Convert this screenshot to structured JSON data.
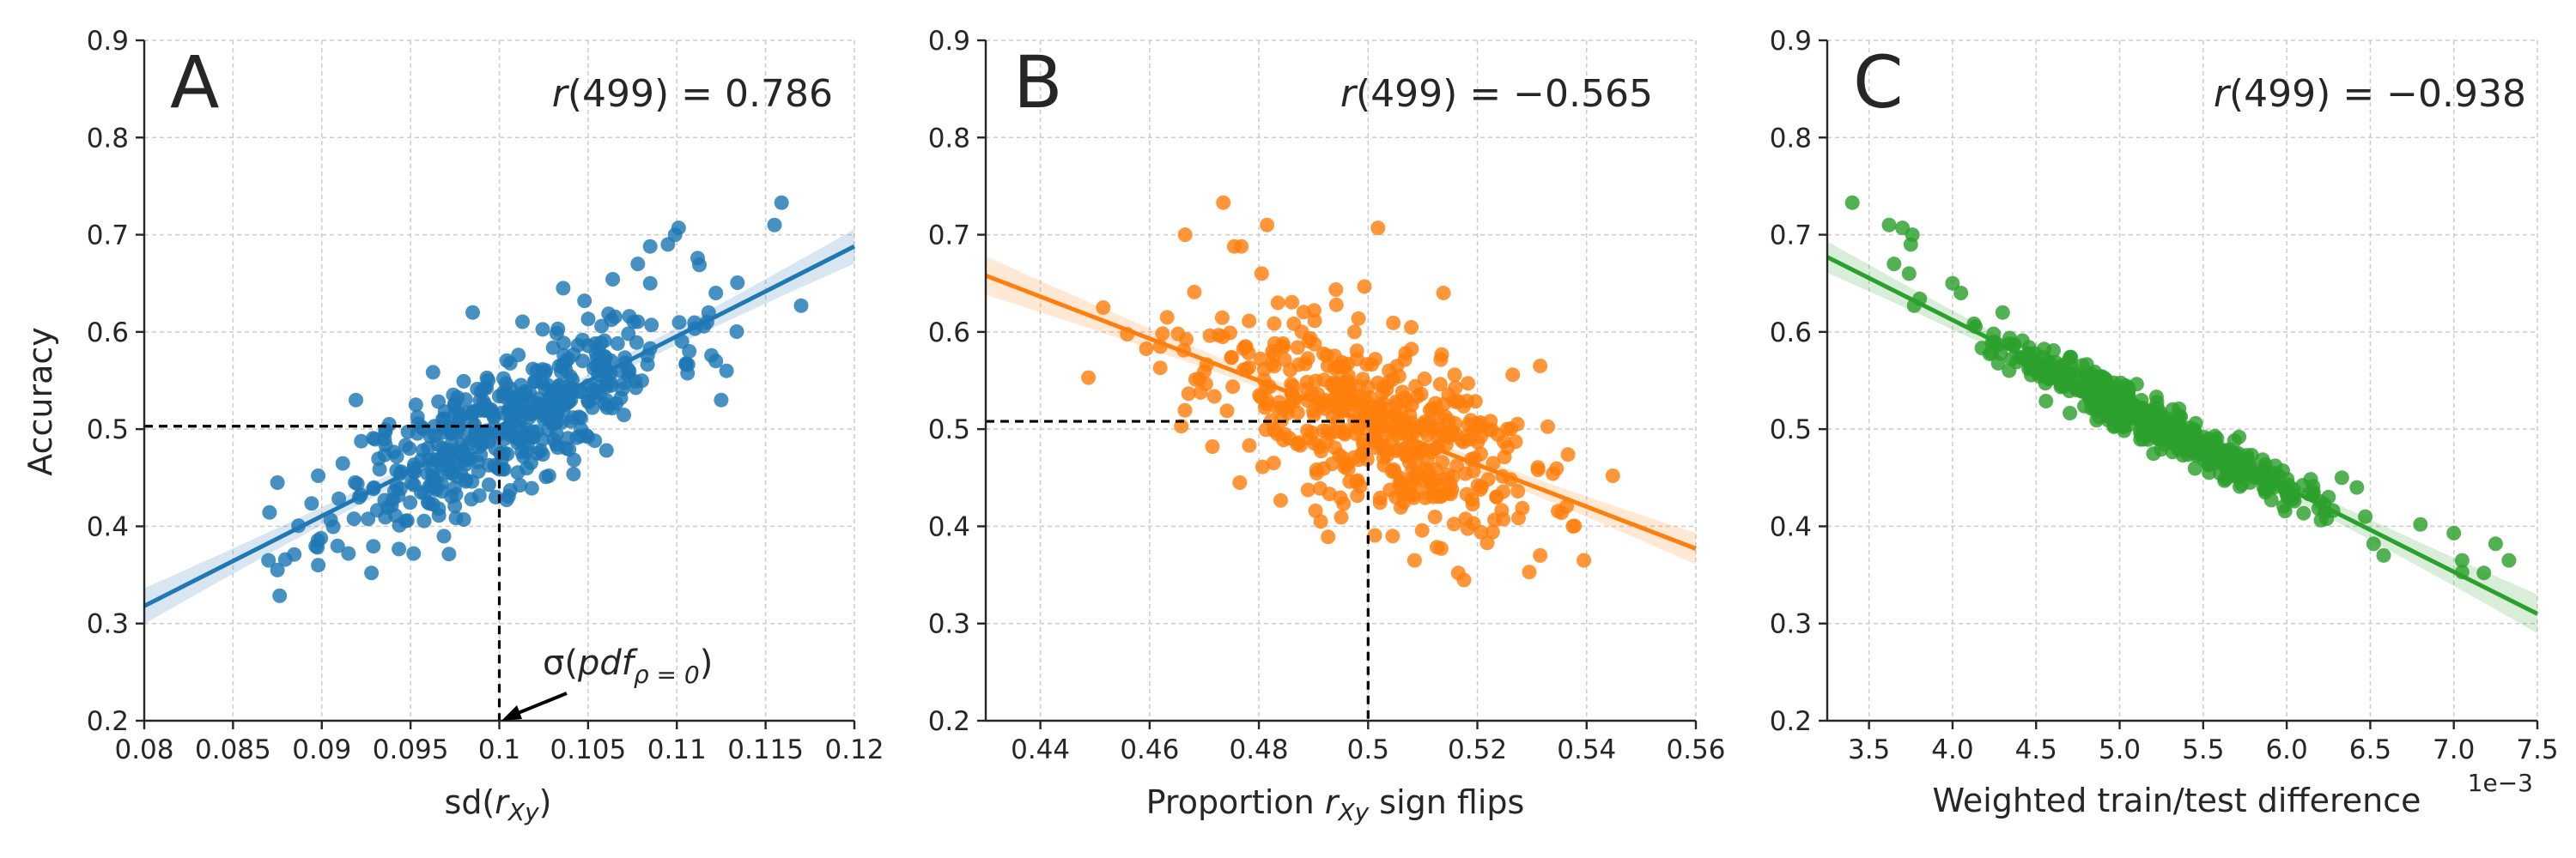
{
  "chart_data": [
    {
      "type": "scatter",
      "panel_label": "A",
      "correlation_text": "r(499) = 0.786",
      "xlabel": "sd(r_Xy)",
      "ylabel": "Accuracy",
      "xlim": [
        0.08,
        0.12
      ],
      "ylim": [
        0.2,
        0.9
      ],
      "x_ticks": [
        0.08,
        0.085,
        0.09,
        0.095,
        0.1,
        0.105,
        0.11,
        0.115,
        0.12
      ],
      "x_tick_labels": [
        "0.08",
        "0.085",
        "0.09",
        "0.095",
        "0.1",
        "0.105",
        "0.11",
        "0.115",
        "0.12"
      ],
      "y_ticks": [
        0.2,
        0.3,
        0.4,
        0.5,
        0.6,
        0.7,
        0.8,
        0.9
      ],
      "y_tick_labels": [
        "0.2",
        "0.3",
        "0.4",
        "0.5",
        "0.6",
        "0.7",
        "0.8",
        "0.9"
      ],
      "color": "#1f77b4",
      "regression": {
        "x": [
          0.08,
          0.12
        ],
        "y": [
          0.318,
          0.688
        ]
      },
      "reference": {
        "x": 0.1,
        "y": 0.503
      },
      "annotation": {
        "text": "σ(pdf_ρ=0)",
        "points_to": [
          0.1,
          0.2
        ]
      },
      "highlight_points": [
        {
          "x": 0.1159,
          "y": 0.733
        },
        {
          "x": 0.1155,
          "y": 0.71
        },
        {
          "x": 0.117,
          "y": 0.627
        },
        {
          "x": 0.1101,
          "y": 0.707
        },
        {
          "x": 0.1099,
          "y": 0.7
        },
        {
          "x": 0.1085,
          "y": 0.688
        },
        {
          "x": 0.1095,
          "y": 0.69
        },
        {
          "x": 0.1078,
          "y": 0.67
        },
        {
          "x": 0.1122,
          "y": 0.64
        },
        {
          "x": 0.1085,
          "y": 0.65
        },
        {
          "x": 0.1122,
          "y": 0.57
        },
        {
          "x": 0.1128,
          "y": 0.56
        },
        {
          "x": 0.1125,
          "y": 0.53
        },
        {
          "x": 0.1107,
          "y": 0.58
        },
        {
          "x": 0.1117,
          "y": 0.61
        },
        {
          "x": 0.0875,
          "y": 0.445
        },
        {
          "x": 0.087,
          "y": 0.365
        },
        {
          "x": 0.0875,
          "y": 0.355
        },
        {
          "x": 0.0898,
          "y": 0.36
        },
        {
          "x": 0.0928,
          "y": 0.352
        },
        {
          "x": 0.0915,
          "y": 0.372
        },
        {
          "x": 0.0898,
          "y": 0.452
        },
        {
          "x": 0.0985,
          "y": 0.62
        },
        {
          "x": 0.1036,
          "y": 0.645
        },
        {
          "x": 0.1048,
          "y": 0.632
        },
        {
          "x": 0.0938,
          "y": 0.505
        },
        {
          "x": 0.0953,
          "y": 0.525
        },
        {
          "x": 0.1028,
          "y": 0.452
        },
        {
          "x": 0.0998,
          "y": 0.43
        },
        {
          "x": 0.1046,
          "y": 0.5
        }
      ],
      "cloud": {
        "n": 470,
        "x_mean": 0.1003,
        "x_sd": 0.0047,
        "y_sd": 0.035,
        "seed": 11
      }
    },
    {
      "type": "scatter",
      "panel_label": "B",
      "correlation_text": "r(499) = −0.565",
      "xlabel": "Proportion r_Xy sign flips",
      "ylabel": "",
      "xlim": [
        0.43,
        0.56
      ],
      "ylim": [
        0.2,
        0.9
      ],
      "x_ticks": [
        0.44,
        0.46,
        0.48,
        0.5,
        0.52,
        0.54,
        0.56
      ],
      "x_tick_labels": [
        "0.44",
        "0.46",
        "0.48",
        "0.5",
        "0.52",
        "0.54",
        "0.56"
      ],
      "y_ticks": [
        0.2,
        0.3,
        0.4,
        0.5,
        0.6,
        0.7,
        0.8,
        0.9
      ],
      "y_tick_labels": [
        "0.2",
        "0.3",
        "0.4",
        "0.5",
        "0.6",
        "0.7",
        "0.8",
        "0.9"
      ],
      "color": "#ff7f0e",
      "regression": {
        "x": [
          0.43,
          0.56
        ],
        "y": [
          0.658,
          0.377
        ]
      },
      "reference": {
        "x": 0.5,
        "y": 0.508
      },
      "highlight_points": [
        {
          "x": 0.4735,
          "y": 0.733
        },
        {
          "x": 0.4815,
          "y": 0.71
        },
        {
          "x": 0.5018,
          "y": 0.707
        },
        {
          "x": 0.4755,
          "y": 0.688
        },
        {
          "x": 0.4768,
          "y": 0.688
        },
        {
          "x": 0.4665,
          "y": 0.7
        },
        {
          "x": 0.4488,
          "y": 0.553
        },
        {
          "x": 0.4515,
          "y": 0.625
        },
        {
          "x": 0.4632,
          "y": 0.615
        },
        {
          "x": 0.4652,
          "y": 0.598
        },
        {
          "x": 0.4658,
          "y": 0.503
        },
        {
          "x": 0.4715,
          "y": 0.482
        },
        {
          "x": 0.4765,
          "y": 0.445
        },
        {
          "x": 0.5138,
          "y": 0.64
        },
        {
          "x": 0.5315,
          "y": 0.565
        },
        {
          "x": 0.5448,
          "y": 0.452
        },
        {
          "x": 0.5395,
          "y": 0.365
        },
        {
          "x": 0.5295,
          "y": 0.353
        },
        {
          "x": 0.5165,
          "y": 0.352
        },
        {
          "x": 0.5085,
          "y": 0.365
        },
        {
          "x": 0.5315,
          "y": 0.37
        },
        {
          "x": 0.5045,
          "y": 0.39
        },
        {
          "x": 0.5375,
          "y": 0.4
        },
        {
          "x": 0.4805,
          "y": 0.66
        },
        {
          "x": 0.4835,
          "y": 0.63
        },
        {
          "x": 0.4775,
          "y": 0.585
        },
        {
          "x": 0.5235,
          "y": 0.43
        },
        {
          "x": 0.5195,
          "y": 0.47
        },
        {
          "x": 0.4975,
          "y": 0.6
        },
        {
          "x": 0.5255,
          "y": 0.5
        }
      ],
      "cloud": {
        "n": 470,
        "x_mean": 0.5,
        "x_sd": 0.015,
        "y_sd": 0.045,
        "seed": 23
      }
    },
    {
      "type": "scatter",
      "panel_label": "C",
      "correlation_text": "r(499) = −0.938",
      "xlabel": "Weighted train/test difference",
      "ylabel": "",
      "x_offset_label": "1e−3",
      "xlim": [
        3.25,
        7.5
      ],
      "ylim": [
        0.2,
        0.9
      ],
      "x_ticks": [
        3.5,
        4.0,
        4.5,
        5.0,
        5.5,
        6.0,
        6.5,
        7.0,
        7.5
      ],
      "x_tick_labels": [
        "3.5",
        "4.0",
        "4.5",
        "5.0",
        "5.5",
        "6.0",
        "6.5",
        "7.0",
        "7.5"
      ],
      "y_ticks": [
        0.2,
        0.3,
        0.4,
        0.5,
        0.6,
        0.7,
        0.8,
        0.9
      ],
      "y_tick_labels": [
        "0.2",
        "0.3",
        "0.4",
        "0.5",
        "0.6",
        "0.7",
        "0.8",
        "0.9"
      ],
      "color": "#2ca02c",
      "regression": {
        "x": [
          3.25,
          7.5
        ],
        "y": [
          0.677,
          0.31
        ]
      },
      "highlight_points": [
        {
          "x": 3.4,
          "y": 0.733
        },
        {
          "x": 3.62,
          "y": 0.71
        },
        {
          "x": 3.7,
          "y": 0.707
        },
        {
          "x": 3.75,
          "y": 0.69
        },
        {
          "x": 3.76,
          "y": 0.7
        },
        {
          "x": 3.65,
          "y": 0.67
        },
        {
          "x": 3.74,
          "y": 0.66
        },
        {
          "x": 3.77,
          "y": 0.627
        },
        {
          "x": 4.0,
          "y": 0.65
        },
        {
          "x": 4.05,
          "y": 0.64
        },
        {
          "x": 7.0,
          "y": 0.393
        },
        {
          "x": 7.05,
          "y": 0.365
        },
        {
          "x": 7.18,
          "y": 0.352
        },
        {
          "x": 7.25,
          "y": 0.382
        },
        {
          "x": 7.33,
          "y": 0.365
        },
        {
          "x": 7.05,
          "y": 0.353
        },
        {
          "x": 6.8,
          "y": 0.402
        },
        {
          "x": 6.58,
          "y": 0.37
        },
        {
          "x": 6.52,
          "y": 0.382
        },
        {
          "x": 6.42,
          "y": 0.44
        },
        {
          "x": 6.33,
          "y": 0.45
        },
        {
          "x": 6.25,
          "y": 0.43
        },
        {
          "x": 4.25,
          "y": 0.59
        },
        {
          "x": 4.3,
          "y": 0.62
        },
        {
          "x": 6.47,
          "y": 0.41
        }
      ],
      "cloud": {
        "n": 470,
        "x_mean": 5.2,
        "x_sd": 0.45,
        "y_sd": 0.012,
        "seed": 37
      }
    }
  ]
}
